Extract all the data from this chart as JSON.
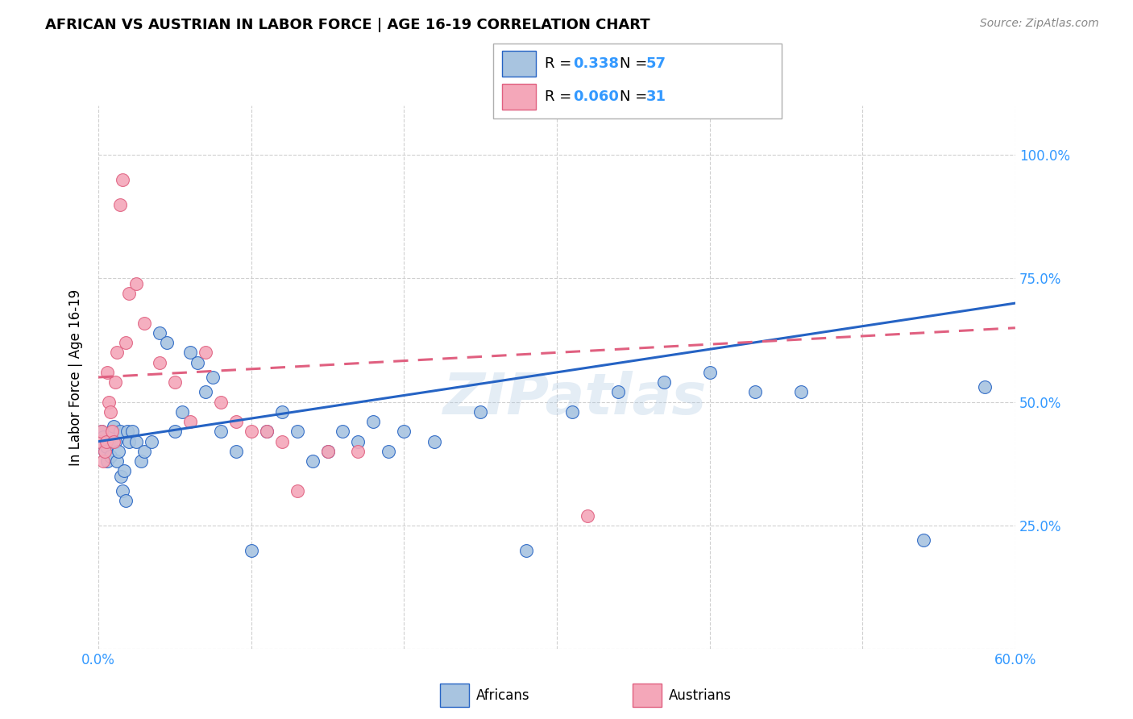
{
  "title": "AFRICAN VS AUSTRIAN IN LABOR FORCE | AGE 16-19 CORRELATION CHART",
  "source": "Source: ZipAtlas.com",
  "ylabel": "In Labor Force | Age 16-19",
  "xlim": [
    0.0,
    0.6
  ],
  "ylim": [
    0.0,
    1.1
  ],
  "african_color": "#a8c4e0",
  "austrian_color": "#f4a7b9",
  "african_line_color": "#2563c4",
  "austrian_line_color": "#e06080",
  "R_african": 0.338,
  "N_african": 57,
  "R_austrian": 0.06,
  "N_austrian": 31,
  "watermark": "ZIPatlas",
  "african_trend_x0": 0.0,
  "african_trend_y0": 0.42,
  "african_trend_x1": 0.6,
  "african_trend_y1": 0.7,
  "austrian_trend_x0": 0.0,
  "austrian_trend_y0": 0.55,
  "austrian_trend_x1": 0.6,
  "austrian_trend_y1": 0.65,
  "africans_x": [
    0.001,
    0.002,
    0.003,
    0.004,
    0.005,
    0.006,
    0.007,
    0.008,
    0.009,
    0.01,
    0.011,
    0.012,
    0.013,
    0.014,
    0.015,
    0.016,
    0.017,
    0.018,
    0.019,
    0.02,
    0.022,
    0.025,
    0.028,
    0.03,
    0.035,
    0.04,
    0.045,
    0.05,
    0.055,
    0.06,
    0.065,
    0.07,
    0.075,
    0.08,
    0.09,
    0.1,
    0.11,
    0.12,
    0.13,
    0.14,
    0.15,
    0.16,
    0.17,
    0.18,
    0.19,
    0.2,
    0.22,
    0.25,
    0.28,
    0.31,
    0.34,
    0.37,
    0.4,
    0.43,
    0.46,
    0.54,
    0.58
  ],
  "africans_y": [
    0.42,
    0.44,
    0.43,
    0.4,
    0.41,
    0.38,
    0.42,
    0.39,
    0.44,
    0.45,
    0.42,
    0.38,
    0.4,
    0.44,
    0.35,
    0.32,
    0.36,
    0.3,
    0.44,
    0.42,
    0.44,
    0.42,
    0.38,
    0.4,
    0.42,
    0.64,
    0.62,
    0.44,
    0.48,
    0.6,
    0.58,
    0.52,
    0.55,
    0.44,
    0.4,
    0.2,
    0.44,
    0.48,
    0.44,
    0.38,
    0.4,
    0.44,
    0.42,
    0.46,
    0.4,
    0.44,
    0.42,
    0.48,
    0.2,
    0.48,
    0.52,
    0.54,
    0.56,
    0.52,
    0.52,
    0.22,
    0.53
  ],
  "austrians_x": [
    0.001,
    0.002,
    0.003,
    0.004,
    0.005,
    0.006,
    0.007,
    0.008,
    0.009,
    0.01,
    0.011,
    0.012,
    0.014,
    0.016,
    0.018,
    0.02,
    0.025,
    0.03,
    0.04,
    0.05,
    0.06,
    0.07,
    0.08,
    0.09,
    0.1,
    0.11,
    0.12,
    0.13,
    0.15,
    0.17,
    0.32
  ],
  "austrians_y": [
    0.42,
    0.44,
    0.38,
    0.4,
    0.42,
    0.56,
    0.5,
    0.48,
    0.44,
    0.42,
    0.54,
    0.6,
    0.9,
    0.95,
    0.62,
    0.72,
    0.74,
    0.66,
    0.58,
    0.54,
    0.46,
    0.6,
    0.5,
    0.46,
    0.44,
    0.44,
    0.42,
    0.32,
    0.4,
    0.4,
    0.27
  ]
}
